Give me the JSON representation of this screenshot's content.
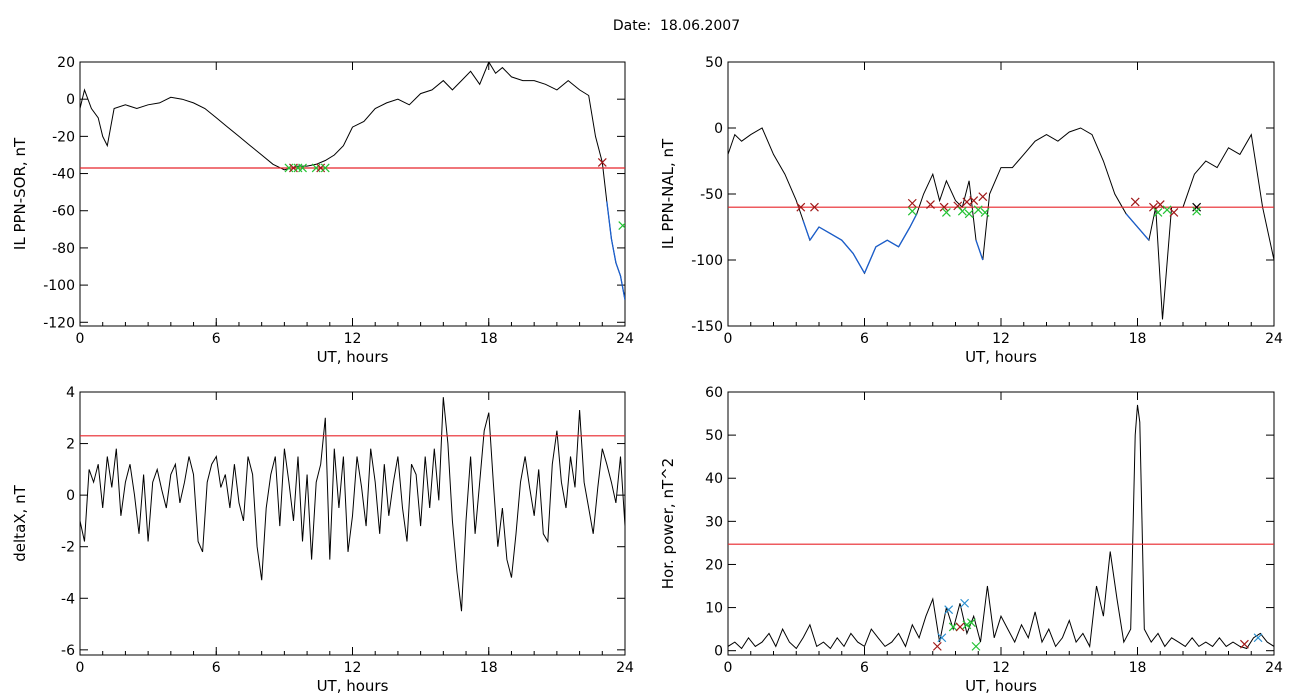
{
  "page": {
    "title": "Date:  18.06.2007"
  },
  "chart_data": [
    {
      "type": "line",
      "ylabel": "IL PPN-SOR, nT",
      "xlabel": "UT, hours",
      "xlim": [
        0,
        24
      ],
      "ylim": [
        -122,
        20
      ],
      "xticks": [
        0,
        6,
        12,
        18,
        24
      ],
      "yticks": [
        20,
        0,
        -20,
        -40,
        -60,
        -80,
        -100,
        -120
      ],
      "threshold": -37,
      "colors": {
        "line": "#000000",
        "below": "#1a5fcf",
        "threshold": "#e8252a"
      },
      "series": [
        {
          "x": [
            0,
            0.2,
            0.5,
            0.8,
            1.0,
            1.2,
            1.5,
            2.0,
            2.5,
            3.0,
            3.5,
            4.0,
            4.5,
            5.0,
            5.5,
            6.0,
            6.5,
            7.0,
            7.5,
            8.0,
            8.5,
            9.0,
            9.3,
            9.6,
            10.0,
            10.4,
            10.8,
            11.2,
            11.6,
            12.0,
            12.5,
            13.0,
            13.5,
            14.0,
            14.5,
            15.0,
            15.5,
            16.0,
            16.4,
            16.8,
            17.2,
            17.6,
            18.0,
            18.3,
            18.6,
            19.0,
            19.5,
            20.0,
            20.5,
            21.0,
            21.5,
            22.0,
            22.4,
            22.7,
            23.0,
            23.2,
            23.4,
            23.6,
            23.8,
            24.0
          ],
          "y": [
            -5,
            5,
            -5,
            -10,
            -20,
            -25,
            -5,
            -3,
            -5,
            -3,
            -2,
            1,
            0,
            -2,
            -5,
            -10,
            -15,
            -20,
            -25,
            -30,
            -35,
            -38,
            -37,
            -36,
            -36,
            -35,
            -33,
            -30,
            -25,
            -15,
            -12,
            -5,
            -2,
            0,
            -3,
            3,
            5,
            10,
            5,
            10,
            15,
            8,
            20,
            14,
            17,
            12,
            10,
            10,
            8,
            5,
            10,
            5,
            2,
            -20,
            -34,
            -55,
            -75,
            -88,
            -95,
            -108
          ]
        }
      ],
      "markers": [
        {
          "x": 9.2,
          "y": -37,
          "color": "#22c232"
        },
        {
          "x": 9.4,
          "y": -37,
          "color": "#a01818"
        },
        {
          "x": 9.6,
          "y": -37,
          "color": "#22c232"
        },
        {
          "x": 9.8,
          "y": -37,
          "color": "#22c232"
        },
        {
          "x": 10.4,
          "y": -37,
          "color": "#22c232"
        },
        {
          "x": 10.6,
          "y": -37,
          "color": "#a01818"
        },
        {
          "x": 10.8,
          "y": -37,
          "color": "#22c232"
        },
        {
          "x": 23.0,
          "y": -34,
          "color": "#a01818"
        },
        {
          "x": 23.9,
          "y": -68,
          "color": "#22c232"
        }
      ]
    },
    {
      "type": "line",
      "ylabel": "IL PPN-NAL, nT",
      "xlabel": "UT, hours",
      "xlim": [
        0,
        24
      ],
      "ylim": [
        -150,
        50
      ],
      "xticks": [
        0,
        6,
        12,
        18,
        24
      ],
      "yticks": [
        50,
        0,
        -50,
        -100,
        -150
      ],
      "threshold": -60,
      "colors": {
        "line": "#000000",
        "below": "#1a5fcf",
        "threshold": "#e8252a"
      },
      "series": [
        {
          "x": [
            0,
            0.3,
            0.6,
            1.0,
            1.5,
            2.0,
            2.5,
            3.0,
            3.3,
            3.6,
            4.0,
            4.5,
            5.0,
            5.5,
            6.0,
            6.5,
            7.0,
            7.5,
            8.0,
            8.3,
            8.6,
            9.0,
            9.3,
            9.6,
            10.0,
            10.3,
            10.6,
            10.9,
            11.2,
            11.5,
            12.0,
            12.5,
            13.0,
            13.5,
            14.0,
            14.5,
            15.0,
            15.5,
            16.0,
            16.5,
            17.0,
            17.5,
            18.0,
            18.5,
            18.8,
            19.1,
            19.5,
            20.0,
            20.5,
            21.0,
            21.5,
            22.0,
            22.5,
            23.0,
            23.5,
            24.0
          ],
          "y": [
            -20,
            -5,
            -10,
            -5,
            0,
            -20,
            -35,
            -55,
            -70,
            -85,
            -75,
            -80,
            -85,
            -95,
            -110,
            -90,
            -85,
            -90,
            -75,
            -65,
            -50,
            -35,
            -55,
            -40,
            -55,
            -60,
            -40,
            -85,
            -100,
            -50,
            -30,
            -30,
            -20,
            -10,
            -5,
            -10,
            -3,
            0,
            -5,
            -25,
            -50,
            -65,
            -75,
            -85,
            -60,
            -145,
            -60,
            -60,
            -35,
            -25,
            -30,
            -15,
            -20,
            -5,
            -60,
            -100
          ]
        }
      ],
      "markers": [
        {
          "x": 3.2,
          "y": -60,
          "color": "#a01818"
        },
        {
          "x": 3.8,
          "y": -60,
          "color": "#a01818"
        },
        {
          "x": 8.1,
          "y": -57,
          "color": "#a01818"
        },
        {
          "x": 8.1,
          "y": -63,
          "color": "#22c232"
        },
        {
          "x": 8.9,
          "y": -58,
          "color": "#a01818"
        },
        {
          "x": 9.5,
          "y": -60,
          "color": "#a01818"
        },
        {
          "x": 9.6,
          "y": -64,
          "color": "#22c232"
        },
        {
          "x": 10.1,
          "y": -59,
          "color": "#a01818"
        },
        {
          "x": 10.3,
          "y": -63,
          "color": "#22c232"
        },
        {
          "x": 10.5,
          "y": -56,
          "color": "#a01818"
        },
        {
          "x": 10.6,
          "y": -65,
          "color": "#22c232"
        },
        {
          "x": 10.8,
          "y": -55,
          "color": "#a01818"
        },
        {
          "x": 11.0,
          "y": -62,
          "color": "#22c232"
        },
        {
          "x": 11.2,
          "y": -52,
          "color": "#a01818"
        },
        {
          "x": 11.3,
          "y": -64,
          "color": "#22c232"
        },
        {
          "x": 17.9,
          "y": -56,
          "color": "#a01818"
        },
        {
          "x": 18.7,
          "y": -60,
          "color": "#a01818"
        },
        {
          "x": 18.9,
          "y": -64,
          "color": "#22c232"
        },
        {
          "x": 19.0,
          "y": -58,
          "color": "#a01818"
        },
        {
          "x": 19.3,
          "y": -62,
          "color": "#22c232"
        },
        {
          "x": 19.6,
          "y": -64,
          "color": "#a01818"
        },
        {
          "x": 20.6,
          "y": -60,
          "color": "#000000"
        },
        {
          "x": 20.6,
          "y": -63,
          "color": "#22c232"
        }
      ]
    },
    {
      "type": "line",
      "ylabel": "deltaX, nT",
      "xlabel": "UT, hours",
      "xlim": [
        0,
        24
      ],
      "ylim": [
        -6.2,
        4
      ],
      "xticks": [
        0,
        6,
        12,
        18,
        24
      ],
      "yticks": [
        4,
        2,
        0,
        -2,
        -4,
        -6
      ],
      "threshold": 2.3,
      "colors": {
        "line": "#000000",
        "threshold": "#e8252a"
      },
      "series": [
        {
          "x": [
            0,
            0.2,
            0.4,
            0.6,
            0.8,
            1.0,
            1.2,
            1.4,
            1.6,
            1.8,
            2.0,
            2.2,
            2.4,
            2.6,
            2.8,
            3.0,
            3.2,
            3.4,
            3.6,
            3.8,
            4.0,
            4.2,
            4.4,
            4.6,
            4.8,
            5.0,
            5.2,
            5.4,
            5.6,
            5.8,
            6.0,
            6.2,
            6.4,
            6.6,
            6.8,
            7.0,
            7.2,
            7.4,
            7.6,
            7.8,
            8.0,
            8.2,
            8.4,
            8.6,
            8.8,
            9.0,
            9.2,
            9.4,
            9.6,
            9.8,
            10.0,
            10.2,
            10.4,
            10.6,
            10.8,
            11.0,
            11.2,
            11.4,
            11.6,
            11.8,
            12.0,
            12.2,
            12.4,
            12.6,
            12.8,
            13.0,
            13.2,
            13.4,
            13.6,
            13.8,
            14.0,
            14.2,
            14.4,
            14.6,
            14.8,
            15.0,
            15.2,
            15.4,
            15.6,
            15.8,
            16.0,
            16.2,
            16.4,
            16.6,
            16.8,
            17.0,
            17.2,
            17.4,
            17.6,
            17.8,
            18.0,
            18.2,
            18.4,
            18.6,
            18.8,
            19.0,
            19.2,
            19.4,
            19.6,
            19.8,
            20.0,
            20.2,
            20.4,
            20.6,
            20.8,
            21.0,
            21.2,
            21.4,
            21.6,
            21.8,
            22.0,
            22.2,
            22.4,
            22.6,
            22.8,
            23.0,
            23.2,
            23.4,
            23.6,
            23.8,
            24.0
          ],
          "y": [
            -1,
            -1.8,
            1,
            0.5,
            1.2,
            -0.5,
            1.5,
            0.3,
            1.8,
            -0.8,
            0.5,
            1.2,
            0,
            -1.5,
            0.8,
            -1.8,
            0.5,
            1,
            0.2,
            -0.5,
            0.8,
            1.2,
            -0.3,
            0.5,
            1.5,
            0.8,
            -1.8,
            -2.2,
            0.5,
            1.2,
            1.5,
            0.3,
            0.8,
            -0.5,
            1.2,
            -0.3,
            -1,
            1.5,
            0.8,
            -2,
            -3.3,
            -0.5,
            0.8,
            1.5,
            -1.2,
            1.8,
            0.5,
            -1,
            1.5,
            -1.8,
            0.8,
            -2.5,
            0.5,
            1.2,
            3,
            -2.5,
            1.8,
            -0.5,
            1.5,
            -2.2,
            -0.8,
            1.5,
            0.3,
            -1.2,
            1.8,
            0.5,
            -1.5,
            1.2,
            -0.8,
            0.5,
            1.5,
            -0.5,
            -1.8,
            1.2,
            0.8,
            -1.2,
            1.5,
            -0.5,
            1.8,
            -0.2,
            3.8,
            2,
            -1,
            -3,
            -4.5,
            -1,
            1.5,
            -1.5,
            0.5,
            2.5,
            3.2,
            0.5,
            -2,
            -0.5,
            -2.5,
            -3.2,
            -1.5,
            0.5,
            1.5,
            0.3,
            -0.8,
            1,
            -1.5,
            -1.8,
            1.2,
            2.5,
            0.5,
            -0.5,
            1.5,
            0.3,
            3.3,
            0.5,
            -0.5,
            -1.5,
            0.3,
            1.8,
            1.2,
            0.5,
            -0.3,
            1.5,
            -1.2
          ]
        }
      ],
      "markers": []
    },
    {
      "type": "line",
      "ylabel": "Hor. power, nT^2",
      "xlabel": "UT, hours",
      "xlim": [
        0,
        24
      ],
      "ylim": [
        -1,
        60
      ],
      "xticks": [
        0,
        6,
        12,
        18,
        24
      ],
      "yticks": [
        60,
        50,
        40,
        30,
        20,
        10,
        0
      ],
      "threshold": 24.7,
      "colors": {
        "line": "#000000",
        "threshold": "#e8252a"
      },
      "series": [
        {
          "x": [
            0,
            0.3,
            0.6,
            0.9,
            1.2,
            1.5,
            1.8,
            2.1,
            2.4,
            2.7,
            3.0,
            3.3,
            3.6,
            3.9,
            4.2,
            4.5,
            4.8,
            5.1,
            5.4,
            5.7,
            6.0,
            6.3,
            6.6,
            6.9,
            7.2,
            7.5,
            7.8,
            8.1,
            8.4,
            8.7,
            9.0,
            9.3,
            9.6,
            9.9,
            10.2,
            10.5,
            10.8,
            11.1,
            11.4,
            11.7,
            12.0,
            12.3,
            12.6,
            12.9,
            13.2,
            13.5,
            13.8,
            14.1,
            14.4,
            14.7,
            15.0,
            15.3,
            15.6,
            15.9,
            16.2,
            16.5,
            16.8,
            17.1,
            17.4,
            17.7,
            17.9,
            18.0,
            18.1,
            18.2,
            18.3,
            18.6,
            18.9,
            19.2,
            19.5,
            19.8,
            20.1,
            20.4,
            20.7,
            21.0,
            21.3,
            21.6,
            21.9,
            22.2,
            22.5,
            22.8,
            23.1,
            23.4,
            23.7,
            24.0
          ],
          "y": [
            1,
            2,
            0.5,
            3,
            1,
            2,
            4,
            1,
            5,
            2,
            0.5,
            3,
            6,
            1,
            2,
            0.5,
            3,
            1,
            4,
            2,
            1,
            5,
            3,
            1,
            2,
            4,
            1,
            6,
            3,
            8,
            12,
            2,
            10,
            5,
            11,
            4,
            8,
            2,
            15,
            3,
            8,
            5,
            2,
            6,
            3,
            9,
            2,
            5,
            1,
            3,
            7,
            2,
            4,
            1,
            15,
            8,
            23,
            12,
            2,
            5,
            50,
            57,
            53,
            30,
            5,
            2,
            4,
            1,
            3,
            2,
            1,
            3,
            1,
            2,
            1,
            3,
            1,
            2,
            1,
            0.5,
            3,
            4,
            2,
            1
          ]
        }
      ],
      "markers": [
        {
          "x": 9.2,
          "y": 1,
          "color": "#a01818"
        },
        {
          "x": 9.4,
          "y": 3,
          "color": "#2a8fd0"
        },
        {
          "x": 9.7,
          "y": 9.5,
          "color": "#2a8fd0"
        },
        {
          "x": 9.9,
          "y": 5.5,
          "color": "#22c232"
        },
        {
          "x": 10.2,
          "y": 5.5,
          "color": "#a01818"
        },
        {
          "x": 10.4,
          "y": 11,
          "color": "#2a8fd0"
        },
        {
          "x": 10.5,
          "y": 6,
          "color": "#22c232"
        },
        {
          "x": 10.7,
          "y": 6.5,
          "color": "#22c232"
        },
        {
          "x": 10.9,
          "y": 1,
          "color": "#22c232"
        },
        {
          "x": 22.7,
          "y": 1.5,
          "color": "#a01818"
        },
        {
          "x": 23.3,
          "y": 3,
          "color": "#2a8fd0"
        }
      ]
    }
  ]
}
